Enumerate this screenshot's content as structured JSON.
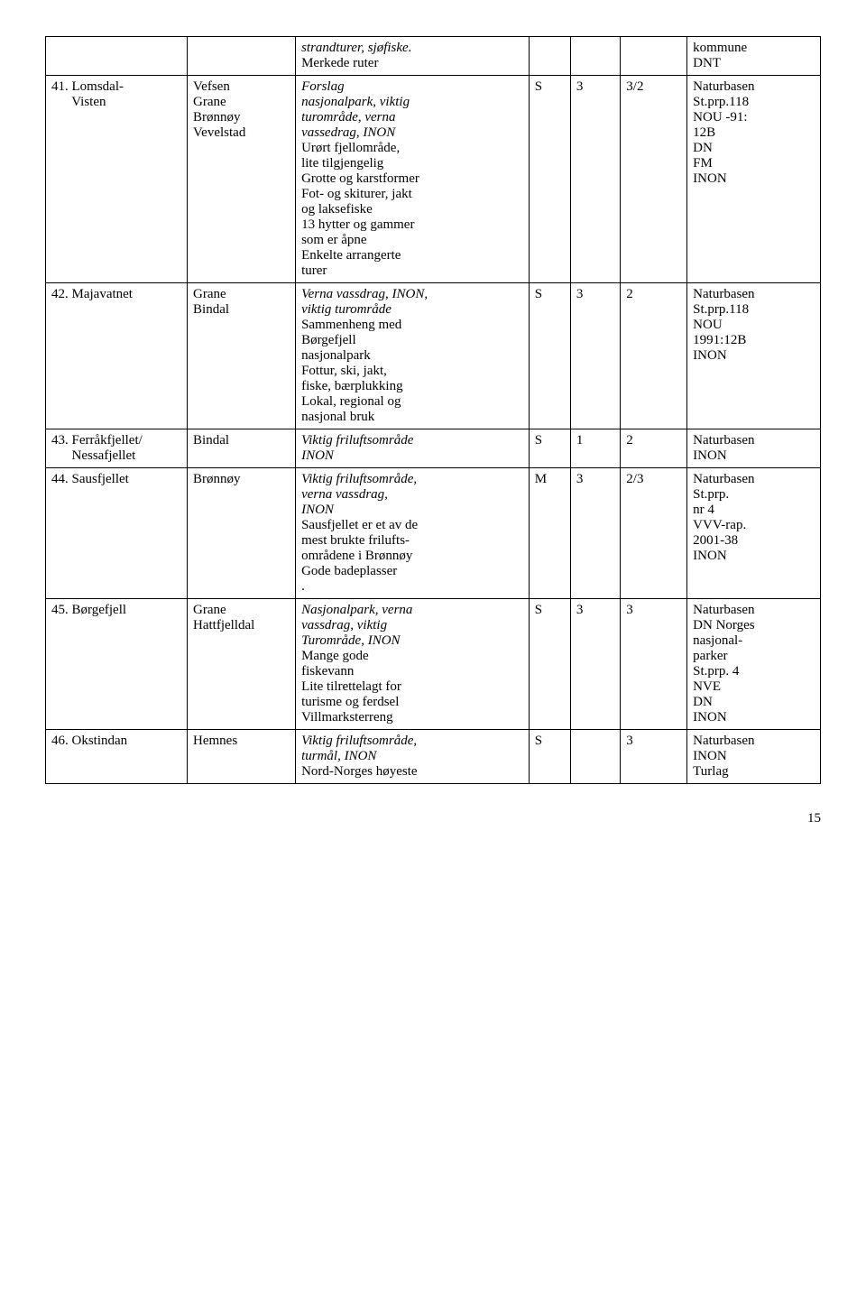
{
  "rows": [
    {
      "name": "",
      "municipality": "",
      "desc_italic": "strandturer, sjøfiske.",
      "desc_plain": "Merkede ruter",
      "col4": "",
      "col5": "",
      "col6": "",
      "col7": "kommune\nDNT"
    },
    {
      "name": "41. Lomsdal-\n      Visten",
      "municipality": "Vefsen\nGrane\nBrønnøy\nVevelstad",
      "desc_italic": "Forslag\nnasjonalpark, viktig\nturområde, verna\nvassedrag, INON",
      "desc_plain": "Urørt fjellområde,\nlite tilgjengelig\nGrotte og karstformer\nFot- og skiturer, jakt\nog laksefiske\n13 hytter og gammer\nsom er åpne\nEnkelte arrangerte\nturer",
      "col4": "S",
      "col5": "3",
      "col6": "3/2",
      "col7": "Naturbasen\nSt.prp.118\nNOU -91:\n12B\nDN\nFM\nINON"
    },
    {
      "name": "42. Majavatnet",
      "municipality": "Grane\nBindal",
      "desc_italic": "Verna vassdrag, INON,\nviktig turområde",
      "desc_plain": "Sammenheng med\nBørgefjell\nnasjonalpark\nFottur, ski, jakt,\nfiske, bærplukking\nLokal, regional og\nnasjonal bruk",
      "col4": "S",
      "col5": "3",
      "col6": "2",
      "col7": "Naturbasen\nSt.prp.118\nNOU\n1991:12B\nINON"
    },
    {
      "name": "43. Ferråkfjellet/\n      Nessafjellet",
      "municipality": "Bindal",
      "desc_italic": "Viktig friluftsområde\nINON",
      "desc_plain": "",
      "col4": "S",
      "col5": "1",
      "col6": "2",
      "col7": "Naturbasen\nINON"
    },
    {
      "name": "44. Sausfjellet",
      "municipality": "Brønnøy",
      "desc_italic": "Viktig friluftsområde,\nverna vassdrag,\nINON",
      "desc_plain": "Sausfjellet er et av de\nmest brukte frilufts-\nområdene i Brønnøy\nGode badeplasser\n.",
      "col4": "M",
      "col5": "3",
      "col6": "2/3",
      "col7": "Naturbasen\nSt.prp.\nnr 4\nVVV-rap.\n2001-38\nINON"
    },
    {
      "name": "45. Børgefjell",
      "municipality": "Grane\nHattfjelldal",
      "desc_italic": "Nasjonalpark, verna\nvassdrag, viktig\nTurområde, INON",
      "desc_plain": "Mange gode\nfiskevann\nLite tilrettelagt for\nturisme og ferdsel\nVillmarksterreng",
      "col4": "S",
      "col5": "3",
      "col6": "3",
      "col7": "Naturbasen\nDN Norges\nnasjonal-\nparker\nSt.prp. 4\nNVE\nDN\nINON"
    },
    {
      "name": "46. Okstindan",
      "municipality": "Hemnes",
      "desc_italic": "Viktig friluftsområde,\nturmål, INON",
      "desc_plain": "Nord-Norges høyeste",
      "col4": "S",
      "col5": "",
      "col6": "3",
      "col7": "Naturbasen\nINON\nTurlag"
    }
  ],
  "page_number": "15"
}
